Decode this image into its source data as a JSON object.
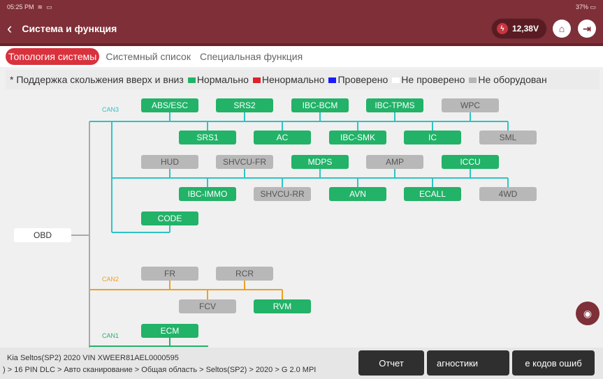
{
  "status_bar": {
    "time": "05:25",
    "ampm": "PM",
    "battery": "37%"
  },
  "header": {
    "title": "Система и функция",
    "voltage": "12,38V"
  },
  "tabs": [
    {
      "label": "Топология системы",
      "active": true
    },
    {
      "label": "Системный список"
    },
    {
      "label": "Специальная функция"
    }
  ],
  "legend": {
    "hint": "* Поддержка скольжения вверх и вниз",
    "items": [
      {
        "label": "Нормально",
        "color": "#22b268"
      },
      {
        "label": "Ненормально",
        "color": "#e0202a"
      },
      {
        "label": "Проверено",
        "color": "#1a1aff"
      },
      {
        "label": "Не проверено",
        "color": "#ffffff"
      },
      {
        "label": "Не оборудован",
        "color": "#b5b5b5"
      }
    ]
  },
  "colors": {
    "normal": "#22b268",
    "not_equipped": "#b8b8b8",
    "can3": "#2ec4c4",
    "can2": "#f0a020",
    "can1": "#22b268",
    "header": "#7e2f37"
  },
  "topology": {
    "root": "OBD",
    "buses": [
      {
        "name": "CAN3",
        "nodes": [
          {
            "name": "ABS/ESC",
            "status": "normal"
          },
          {
            "name": "SRS2",
            "status": "normal"
          },
          {
            "name": "IBC-BCM",
            "status": "normal"
          },
          {
            "name": "IBC-TPMS",
            "status": "normal"
          },
          {
            "name": "WPC",
            "status": "na"
          },
          {
            "name": "SRS1",
            "status": "normal"
          },
          {
            "name": "AC",
            "status": "normal"
          },
          {
            "name": "IBC-SMK",
            "status": "normal"
          },
          {
            "name": "IC",
            "status": "normal"
          },
          {
            "name": "SML",
            "status": "na"
          },
          {
            "name": "HUD",
            "status": "na"
          },
          {
            "name": "SHVCU-FR",
            "status": "na"
          },
          {
            "name": "MDPS",
            "status": "normal"
          },
          {
            "name": "AMP",
            "status": "na"
          },
          {
            "name": "ICCU",
            "status": "normal"
          },
          {
            "name": "IBC-IMMO",
            "status": "normal"
          },
          {
            "name": "SHVCU-RR",
            "status": "na"
          },
          {
            "name": "AVN",
            "status": "normal"
          },
          {
            "name": "ECALL",
            "status": "normal"
          },
          {
            "name": "4WD",
            "status": "na"
          },
          {
            "name": "CODE",
            "status": "normal"
          }
        ]
      },
      {
        "name": "CAN2",
        "nodes": [
          {
            "name": "FR",
            "status": "na"
          },
          {
            "name": "RCR",
            "status": "na"
          },
          {
            "name": "FCV",
            "status": "na"
          },
          {
            "name": "RVM",
            "status": "normal"
          }
        ]
      },
      {
        "name": "CAN1",
        "nodes": [
          {
            "name": "ECM",
            "status": "normal"
          }
        ]
      }
    ]
  },
  "footer": {
    "vehicle": "Kia  Seltos(SP2)  2020  VIN  XWEER81AEL0000595",
    "path": ") > 16 PIN DLC > Авто сканирование > Общая область > Seltos(SP2) > 2020 >  G 2.0 MPI",
    "buttons": [
      "Отчет",
      "агностики",
      "е кодов ошиб"
    ]
  }
}
